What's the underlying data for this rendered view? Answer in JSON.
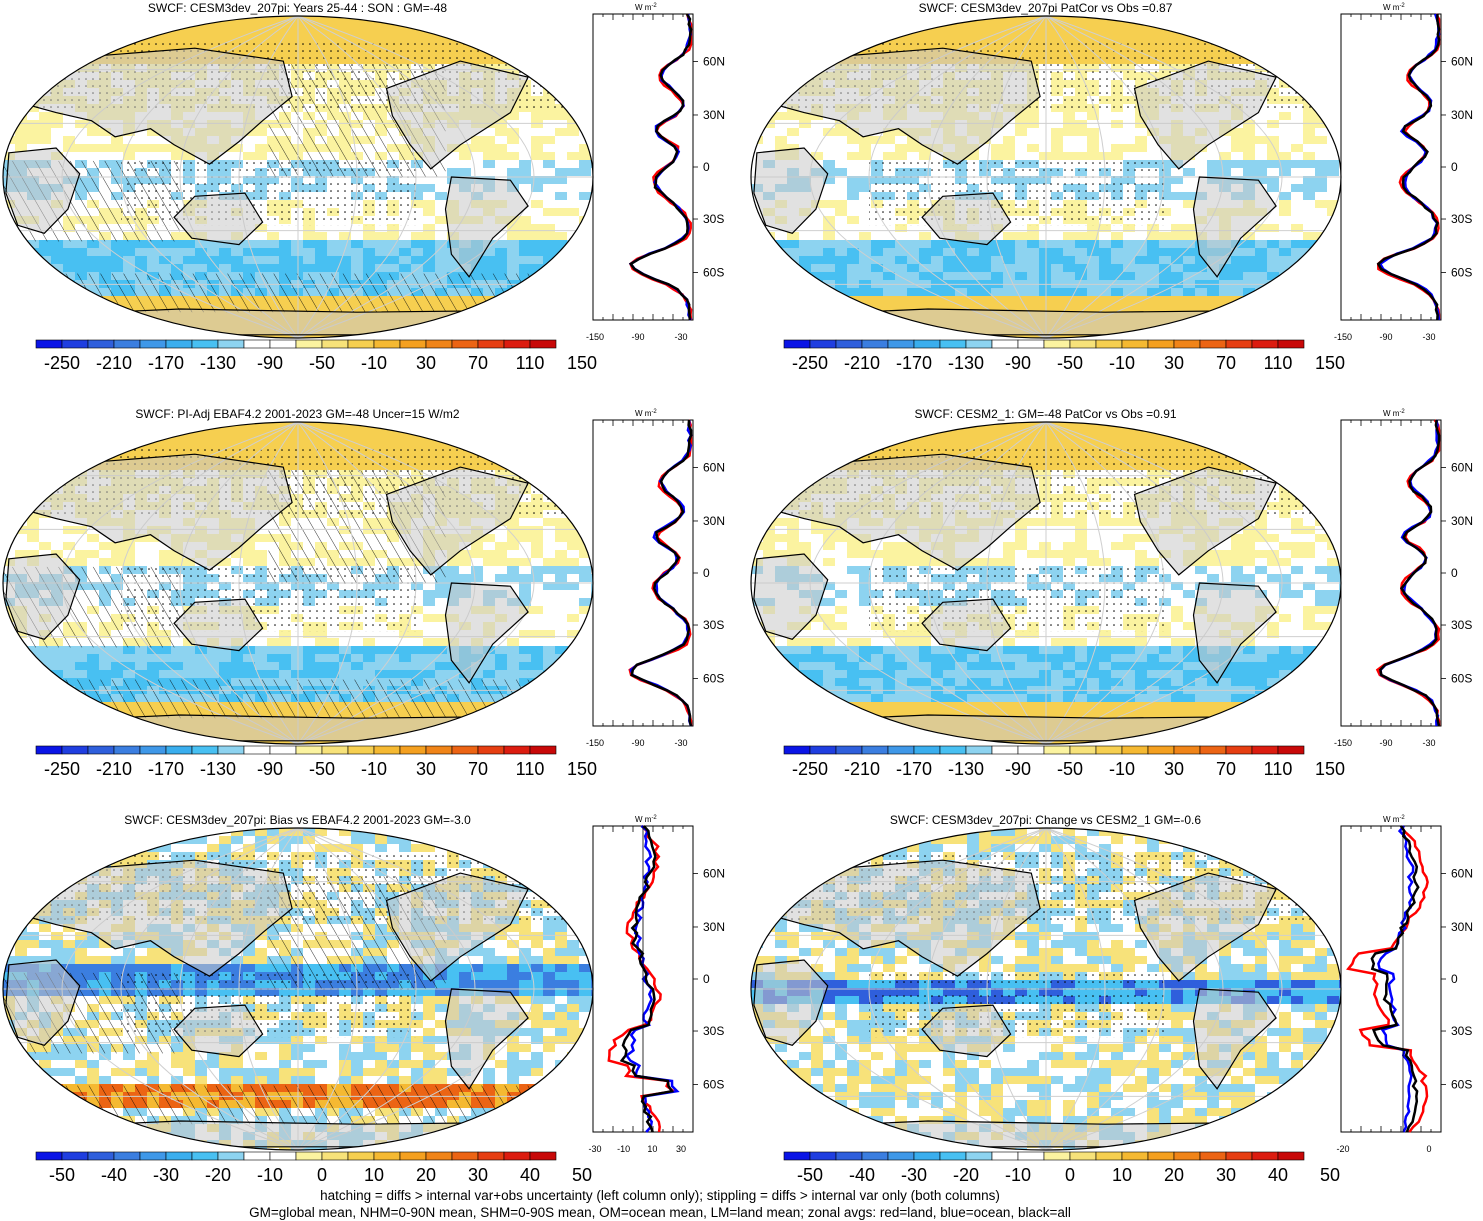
{
  "panels": [
    {
      "title": "SWCF: CESM3dev_207pi: Years 25-44 : SON : GM=-48",
      "colorbar": {
        "labels": [
          "-250",
          "-210",
          "-170",
          "-130",
          "-90",
          "-50",
          "-10",
          "30",
          "70",
          "110",
          "150"
        ]
      },
      "zonal": {
        "unit_w": "W m",
        "unit_exp": "-2",
        "lat_labels": [
          "60N",
          "30N",
          "0",
          "30S",
          "60S"
        ],
        "x_labels": [
          "-150",
          "-90",
          "-30"
        ],
        "style": "mean"
      }
    },
    {
      "title": "SWCF: CESM3dev_207pi PatCor vs Obs =0.87",
      "colorbar": {
        "labels": [
          "-250",
          "-210",
          "-170",
          "-130",
          "-90",
          "-50",
          "-10",
          "30",
          "70",
          "110",
          "150"
        ]
      },
      "zonal": {
        "unit_w": "W m",
        "unit_exp": "-2",
        "lat_labels": [
          "60N",
          "30N",
          "0",
          "30S",
          "60S"
        ],
        "x_labels": [
          "-150",
          "-90",
          "-30"
        ],
        "style": "mean"
      }
    },
    {
      "title": "SWCF: PI-Adj EBAF4.2 2001-2023 GM=-48 Uncer=15 W/m2",
      "colorbar": {
        "labels": [
          "-250",
          "-210",
          "-170",
          "-130",
          "-90",
          "-50",
          "-10",
          "30",
          "70",
          "110",
          "150"
        ]
      },
      "zonal": {
        "unit_w": "W m",
        "unit_exp": "-2",
        "lat_labels": [
          "60N",
          "30N",
          "0",
          "30S",
          "60S"
        ],
        "x_labels": [
          "-150",
          "-90",
          "-30"
        ],
        "style": "mean"
      }
    },
    {
      "title": "SWCF: CESM2_1: GM=-48 PatCor vs Obs =0.91",
      "colorbar": {
        "labels": [
          "-250",
          "-210",
          "-170",
          "-130",
          "-90",
          "-50",
          "-10",
          "30",
          "70",
          "110",
          "150"
        ]
      },
      "zonal": {
        "unit_w": "W m",
        "unit_exp": "-2",
        "lat_labels": [
          "60N",
          "30N",
          "0",
          "30S",
          "60S"
        ],
        "x_labels": [
          "-150",
          "-90",
          "-30"
        ],
        "style": "mean"
      }
    },
    {
      "title": "SWCF: CESM3dev_207pi: Bias vs EBAF4.2 2001-2023  GM=-3.0",
      "colorbar": {
        "labels": [
          "-50",
          "-40",
          "-30",
          "-20",
          "-10",
          "0",
          "10",
          "20",
          "30",
          "40",
          "50"
        ]
      },
      "zonal": {
        "unit_w": "W m",
        "unit_exp": "-2",
        "lat_labels": [
          "60N",
          "30N",
          "0",
          "30S",
          "60S"
        ],
        "x_labels": [
          "-30",
          "-10",
          "10",
          "30"
        ],
        "style": "diff"
      }
    },
    {
      "title": "SWCF: CESM3dev_207pi: Change vs CESM2_1 GM=-0.6",
      "colorbar": {
        "labels": [
          "-50",
          "-40",
          "-30",
          "-20",
          "-10",
          "0",
          "10",
          "20",
          "30",
          "40",
          "50"
        ]
      },
      "zonal": {
        "unit_w": "W m",
        "unit_exp": "-2",
        "lat_labels": [
          "60N",
          "30N",
          "0",
          "30S",
          "60S"
        ],
        "x_labels": [
          "-20",
          "0"
        ],
        "style": "change"
      }
    }
  ],
  "colors": {
    "scale": [
      "#0a14e6",
      "#1f3ee0",
      "#2f5fdc",
      "#3b7ee0",
      "#3f98e8",
      "#3aaeee",
      "#48c0f2",
      "#8dd3f0",
      "#ffffff",
      "#ffffff",
      "#fbf3a0",
      "#f7e27a",
      "#f6cf50",
      "#f5b932",
      "#f4a020",
      "#f08418",
      "#ec6414",
      "#e63e12",
      "#dc1c10",
      "#c80808"
    ],
    "land": "#c8c8c8",
    "zonal_land": "#ff0000",
    "zonal_ocean": "#0000ff",
    "zonal_all": "#000000"
  },
  "chart_data": [
    {
      "type": "heatmap",
      "title": "SWCF: CESM3dev_207pi: Years 25-44 : SON : GM=-48",
      "colorbar_levels": [
        "-250",
        "-210",
        "-170",
        "-130",
        "-90",
        "-50",
        "-10",
        "30",
        "70",
        "110",
        "150"
      ]
    },
    {
      "type": "heatmap",
      "title": "SWCF: CESM3dev_207pi PatCor vs Obs =0.87",
      "colorbar_levels": [
        "-250",
        "-210",
        "-170",
        "-130",
        "-90",
        "-50",
        "-10",
        "30",
        "70",
        "110",
        "150"
      ]
    },
    {
      "type": "heatmap",
      "title": "SWCF: PI-Adj EBAF4.2 2001-2023 GM=-48 Uncer=15 W/m2",
      "colorbar_levels": [
        "-250",
        "-210",
        "-170",
        "-130",
        "-90",
        "-50",
        "-10",
        "30",
        "70",
        "110",
        "150"
      ]
    },
    {
      "type": "heatmap",
      "title": "SWCF: CESM2_1: GM=-48 PatCor vs Obs =0.91",
      "colorbar_levels": [
        "-250",
        "-210",
        "-170",
        "-130",
        "-90",
        "-50",
        "-10",
        "30",
        "70",
        "110",
        "150"
      ]
    },
    {
      "type": "heatmap",
      "title": "SWCF: CESM3dev_207pi: Bias vs EBAF4.2 2001-2023  GM=-3.0",
      "colorbar_levels": [
        "-50",
        "-40",
        "-30",
        "-20",
        "-10",
        "0",
        "10",
        "20",
        "30",
        "40",
        "50"
      ]
    },
    {
      "type": "heatmap",
      "title": "SWCF: CESM3dev_207pi: Change vs CESM2_1 GM=-0.6",
      "colorbar_levels": [
        "-50",
        "-40",
        "-30",
        "-20",
        "-10",
        "0",
        "10",
        "20",
        "30",
        "40",
        "50"
      ]
    }
  ],
  "footer": {
    "line1": "hatching = diffs > internal var+obs uncertainty (left column only); stippling = diffs > internal var only (both columns)",
    "line2": "GM=global mean, NHM=0-90N mean, SHM=0-90S mean, OM=ocean mean, LM=land mean; zonal avgs: red=land, blue=ocean, black=all"
  }
}
